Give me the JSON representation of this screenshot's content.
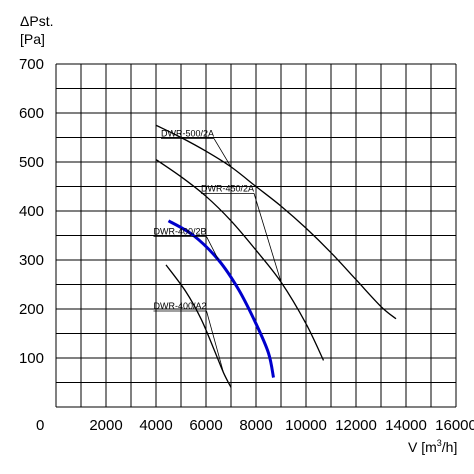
{
  "chart_data": {
    "type": "line",
    "ylabel_line1": "ΔPst.",
    "ylabel_line2": "[Pa]",
    "xlabel": "V [m",
    "xlabel_sup": "3",
    "xlabel_tail": "/h]",
    "xlim": [
      0,
      16000
    ],
    "ylim": [
      0,
      700
    ],
    "grid": true,
    "origin_label": "0",
    "x_ticks": [
      "2000",
      "4000",
      "6000",
      "8000",
      "10000",
      "12000",
      "14000",
      "16000"
    ],
    "y_ticks": [
      "100",
      "200",
      "300",
      "400",
      "500",
      "600",
      "700"
    ],
    "series": [
      {
        "name": "DWR-500/2A",
        "color": "#000000",
        "label_x": 4200,
        "label_y": 552,
        "points": [
          [
            4000,
            575
          ],
          [
            5000,
            550
          ],
          [
            6000,
            522
          ],
          [
            7000,
            490
          ],
          [
            8000,
            450
          ],
          [
            9000,
            410
          ],
          [
            10000,
            365
          ],
          [
            11000,
            315
          ],
          [
            12000,
            260
          ],
          [
            13000,
            205
          ],
          [
            13600,
            180
          ]
        ]
      },
      {
        "name": "DWR-450/2A",
        "color": "#000000",
        "label_x": 5800,
        "label_y": 440,
        "points": [
          [
            4000,
            505
          ],
          [
            5000,
            470
          ],
          [
            6000,
            430
          ],
          [
            7000,
            380
          ],
          [
            8000,
            320
          ],
          [
            9000,
            255
          ],
          [
            10000,
            170
          ],
          [
            10700,
            95
          ]
        ]
      },
      {
        "name": "DWR-400/2B",
        "color": "#0000cc",
        "label_x": 3900,
        "label_y": 352,
        "points": [
          [
            4500,
            380
          ],
          [
            5500,
            350
          ],
          [
            6500,
            300
          ],
          [
            7300,
            240
          ],
          [
            8000,
            170
          ],
          [
            8500,
            110
          ],
          [
            8700,
            60
          ]
        ]
      },
      {
        "name": "DWR-400/A2",
        "color": "#000000",
        "label_x": 3900,
        "label_y": 200,
        "points": [
          [
            4400,
            290
          ],
          [
            5200,
            235
          ],
          [
            5800,
            180
          ],
          [
            6300,
            120
          ],
          [
            6700,
            70
          ],
          [
            7000,
            40
          ]
        ]
      }
    ]
  }
}
